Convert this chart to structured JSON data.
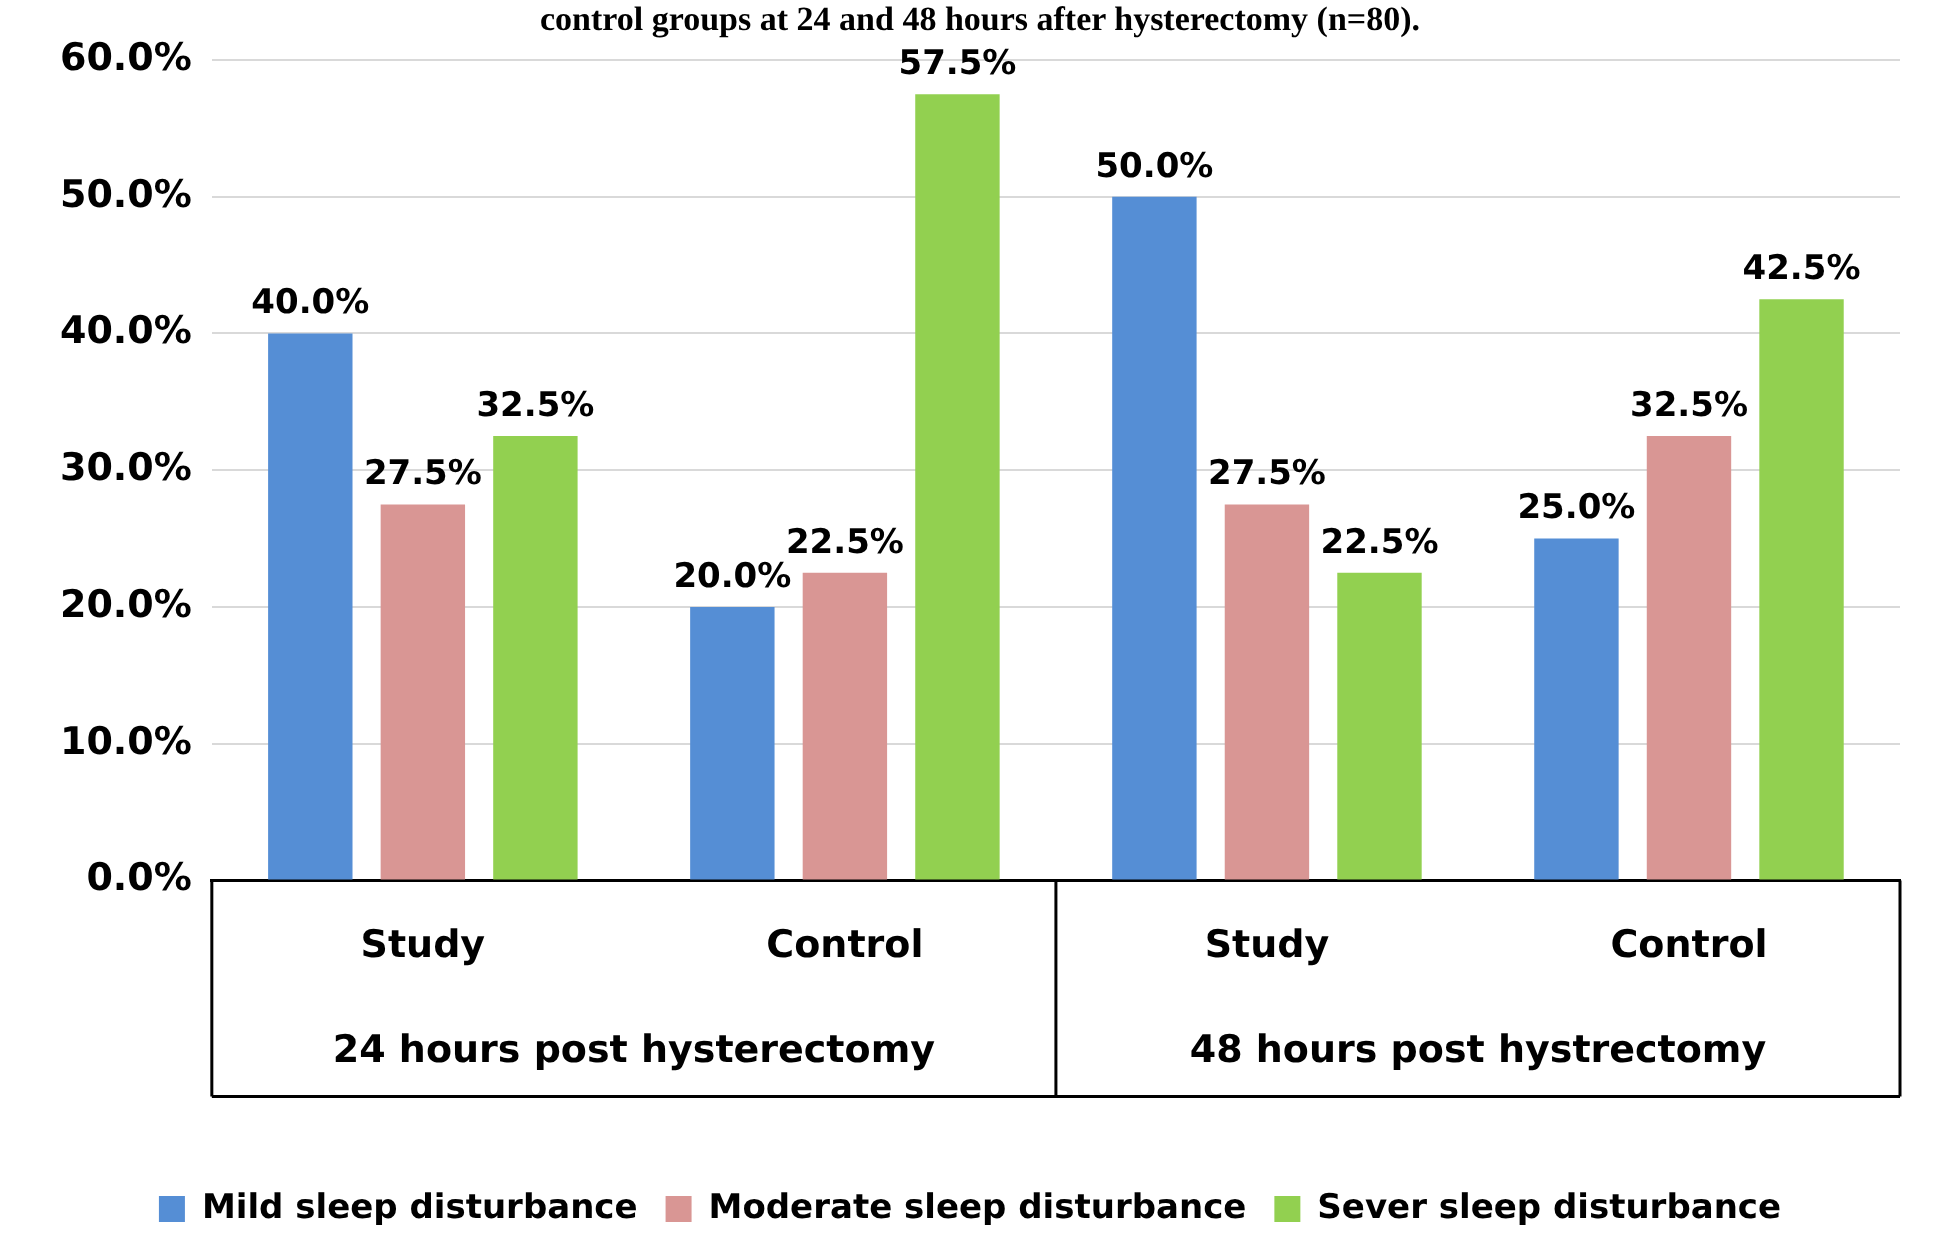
{
  "chart_data": {
    "type": "bar",
    "title": "control groups at 24 and 48 hours after hysterectomy (n=80).",
    "categories": [
      "Study",
      "Control",
      "Study",
      "Control"
    ],
    "annotations": [
      "24 hours post hysterectomy",
      "48 hours post hystrectomy"
    ],
    "series": [
      {
        "name": "Mild sleep disturbance",
        "color": "#558ed5",
        "values": [
          40,
          20,
          50,
          25
        ],
        "value_labels": [
          "40.0%",
          "20.0%",
          "50.0%",
          "25.0%"
        ]
      },
      {
        "name": "Moderate sleep disturbance",
        "color": "#d99694",
        "values": [
          27.5,
          22.5,
          27.5,
          32.5
        ],
        "value_labels": [
          "27.5%",
          "22.5%",
          "27.5%",
          "32.5%"
        ]
      },
      {
        "name": "Sever sleep disturbance",
        "color": "#92d050",
        "values": [
          32.5,
          57.5,
          22.5,
          42.5
        ],
        "value_labels": [
          "32.5%",
          "57.5%",
          "22.5%",
          "42.5%"
        ]
      }
    ],
    "ylim": [
      0,
      60
    ],
    "yticks": [
      {
        "value": 0,
        "label": "0.0%"
      },
      {
        "value": 10,
        "label": "10.0%"
      },
      {
        "value": 20,
        "label": "20.0%"
      },
      {
        "value": 30,
        "label": "30.0%"
      },
      {
        "value": 40,
        "label": "40.0%"
      },
      {
        "value": 50,
        "label": "50.0%"
      },
      {
        "value": 60,
        "label": "60.0%"
      }
    ],
    "grid": "y",
    "legend": "bottom"
  }
}
